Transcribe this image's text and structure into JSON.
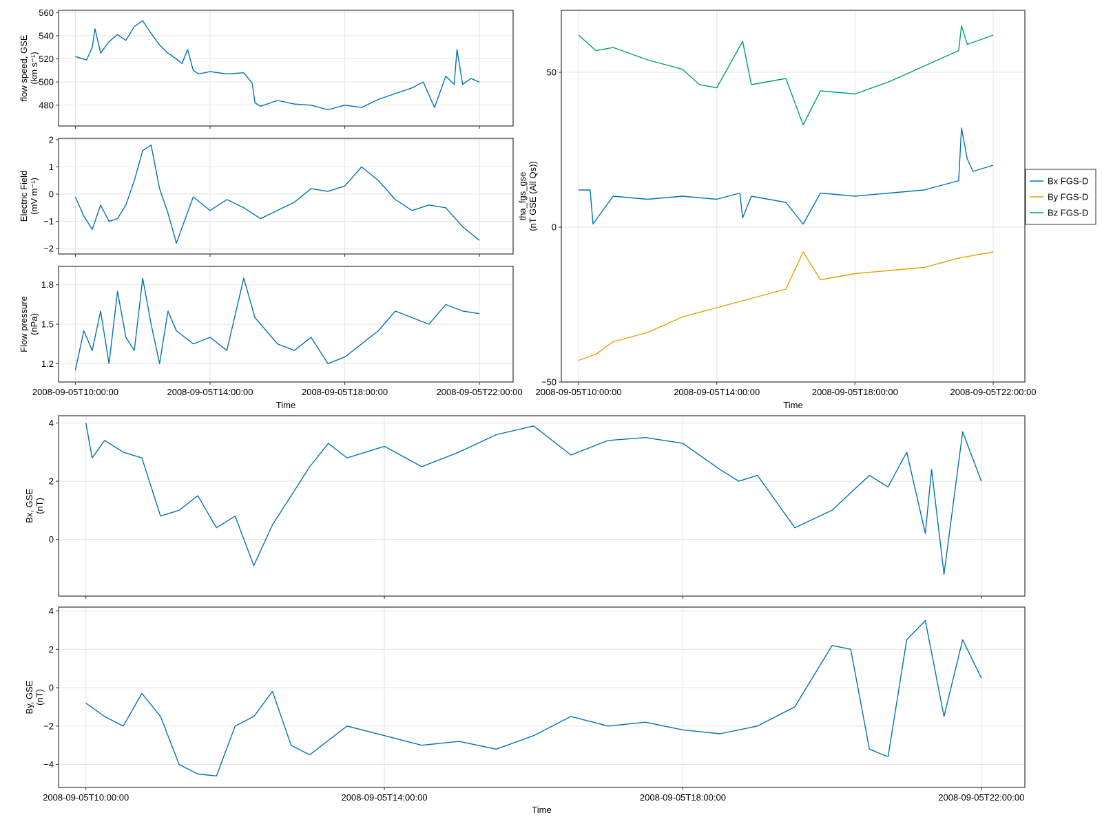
{
  "chart_data": [
    {
      "id": "flow-speed",
      "type": "line",
      "ylabel": [
        "flow speed, GSE",
        "(km s⁻¹)"
      ],
      "xlabel": "",
      "ylim": [
        462,
        562
      ],
      "yticks": [
        480,
        500,
        520,
        540,
        560
      ],
      "xlim": [
        "2008-09-05T09:30:00",
        "2008-09-05T23:00:00"
      ],
      "xticks": [
        "2008-09-05T10:00:00",
        "2008-09-05T14:00:00",
        "2008-09-05T18:00:00",
        "2008-09-05T22:00:00"
      ],
      "xtick_labels_shown": false,
      "grid": true,
      "series": [
        {
          "color": "#0072b2",
          "t": [
            "2008-09-05T10:00:00",
            "2008-09-05T10:20:00",
            "2008-09-05T10:30:00",
            "2008-09-05T10:35:00",
            "2008-09-05T10:45:00",
            "2008-09-05T11:00:00",
            "2008-09-05T11:15:00",
            "2008-09-05T11:30:00",
            "2008-09-05T11:45:00",
            "2008-09-05T12:00:00",
            "2008-09-05T12:15:00",
            "2008-09-05T12:30:00",
            "2008-09-05T12:45:00",
            "2008-09-05T13:00:00",
            "2008-09-05T13:10:00",
            "2008-09-05T13:20:00",
            "2008-09-05T13:30:00",
            "2008-09-05T13:40:00",
            "2008-09-05T14:00:00",
            "2008-09-05T14:30:00",
            "2008-09-05T15:00:00",
            "2008-09-05T15:15:00",
            "2008-09-05T15:20:00",
            "2008-09-05T15:30:00",
            "2008-09-05T16:00:00",
            "2008-09-05T16:30:00",
            "2008-09-05T17:00:00",
            "2008-09-05T17:30:00",
            "2008-09-05T18:00:00",
            "2008-09-05T18:30:00",
            "2008-09-05T19:00:00",
            "2008-09-05T19:30:00",
            "2008-09-05T20:00:00",
            "2008-09-05T20:20:00",
            "2008-09-05T20:40:00",
            "2008-09-05T21:00:00",
            "2008-09-05T21:15:00",
            "2008-09-05T21:20:00",
            "2008-09-05T21:30:00",
            "2008-09-05T21:45:00",
            "2008-09-05T22:00:00"
          ],
          "y": [
            522,
            519,
            530,
            546,
            525,
            535,
            541,
            536,
            548,
            553,
            542,
            532,
            525,
            520,
            516,
            528,
            510,
            507,
            509,
            507,
            508,
            499,
            482,
            479,
            484,
            481,
            480,
            476,
            480,
            478,
            485,
            490,
            495,
            500,
            478,
            505,
            498,
            528,
            498,
            503,
            500
          ]
        }
      ]
    },
    {
      "id": "electric-field",
      "type": "line",
      "ylabel": [
        "Electric Field",
        "(mV m⁻¹)"
      ],
      "xlabel": "",
      "ylim": [
        -2.2,
        2.05
      ],
      "yticks": [
        -2,
        -1,
        0,
        1,
        2
      ],
      "xlim": [
        "2008-09-05T09:30:00",
        "2008-09-05T23:00:00"
      ],
      "xticks": [
        "2008-09-05T10:00:00",
        "2008-09-05T14:00:00",
        "2008-09-05T18:00:00",
        "2008-09-05T22:00:00"
      ],
      "xtick_labels_shown": false,
      "grid": true,
      "series": [
        {
          "color": "#0072b2",
          "t": [
            "2008-09-05T10:00:00",
            "2008-09-05T10:15:00",
            "2008-09-05T10:30:00",
            "2008-09-05T10:45:00",
            "2008-09-05T11:00:00",
            "2008-09-05T11:15:00",
            "2008-09-05T11:30:00",
            "2008-09-05T11:45:00",
            "2008-09-05T12:00:00",
            "2008-09-05T12:15:00",
            "2008-09-05T12:30:00",
            "2008-09-05T12:45:00",
            "2008-09-05T13:00:00",
            "2008-09-05T13:30:00",
            "2008-09-05T14:00:00",
            "2008-09-05T14:30:00",
            "2008-09-05T15:00:00",
            "2008-09-05T15:30:00",
            "2008-09-05T16:00:00",
            "2008-09-05T16:30:00",
            "2008-09-05T17:00:00",
            "2008-09-05T17:30:00",
            "2008-09-05T18:00:00",
            "2008-09-05T18:30:00",
            "2008-09-05T19:00:00",
            "2008-09-05T19:30:00",
            "2008-09-05T20:00:00",
            "2008-09-05T20:30:00",
            "2008-09-05T21:00:00",
            "2008-09-05T21:30:00",
            "2008-09-05T22:00:00"
          ],
          "y": [
            -0.1,
            -0.8,
            -1.3,
            -0.4,
            -1.0,
            -0.9,
            -0.4,
            0.5,
            1.6,
            1.8,
            0.2,
            -0.7,
            -1.8,
            -0.1,
            -0.6,
            -0.2,
            -0.5,
            -0.9,
            -0.6,
            -0.3,
            0.2,
            0.1,
            0.3,
            1.0,
            0.5,
            -0.2,
            -0.6,
            -0.4,
            -0.5,
            -1.2,
            -1.7
          ]
        }
      ]
    },
    {
      "id": "flow-pressure",
      "type": "line",
      "ylabel": [
        "Flow pressure",
        "(nPa)"
      ],
      "xlabel": "Time",
      "ylim": [
        1.06,
        1.94
      ],
      "yticks": [
        1.2,
        1.5,
        1.8
      ],
      "xlim": [
        "2008-09-05T09:30:00",
        "2008-09-05T23:00:00"
      ],
      "xticks": [
        "2008-09-05T10:00:00",
        "2008-09-05T14:00:00",
        "2008-09-05T18:00:00",
        "2008-09-05T22:00:00"
      ],
      "xtick_labels_shown": true,
      "grid": true,
      "series": [
        {
          "color": "#0072b2",
          "t": [
            "2008-09-05T10:00:00",
            "2008-09-05T10:15:00",
            "2008-09-05T10:30:00",
            "2008-09-05T10:45:00",
            "2008-09-05T11:00:00",
            "2008-09-05T11:15:00",
            "2008-09-05T11:30:00",
            "2008-09-05T11:45:00",
            "2008-09-05T12:00:00",
            "2008-09-05T12:15:00",
            "2008-09-05T12:30:00",
            "2008-09-05T12:45:00",
            "2008-09-05T13:00:00",
            "2008-09-05T13:30:00",
            "2008-09-05T14:00:00",
            "2008-09-05T14:30:00",
            "2008-09-05T15:00:00",
            "2008-09-05T15:20:00",
            "2008-09-05T15:40:00",
            "2008-09-05T16:00:00",
            "2008-09-05T16:30:00",
            "2008-09-05T17:00:00",
            "2008-09-05T17:30:00",
            "2008-09-05T18:00:00",
            "2008-09-05T18:30:00",
            "2008-09-05T19:00:00",
            "2008-09-05T19:30:00",
            "2008-09-05T20:00:00",
            "2008-09-05T20:30:00",
            "2008-09-05T21:00:00",
            "2008-09-05T21:30:00",
            "2008-09-05T22:00:00"
          ],
          "y": [
            1.15,
            1.45,
            1.3,
            1.6,
            1.2,
            1.75,
            1.4,
            1.3,
            1.85,
            1.5,
            1.2,
            1.6,
            1.45,
            1.35,
            1.4,
            1.3,
            1.85,
            1.55,
            1.45,
            1.35,
            1.3,
            1.4,
            1.2,
            1.25,
            1.35,
            1.45,
            1.6,
            1.55,
            1.5,
            1.65,
            1.6,
            1.58
          ]
        }
      ]
    },
    {
      "id": "tha-fgs-gse",
      "type": "line",
      "ylabel": [
        "tha_fgs_gse",
        "(nT GSE (All Qs))"
      ],
      "xlabel": "Time",
      "ylim": [
        -50,
        70
      ],
      "yticks": [
        -50,
        0,
        50
      ],
      "xlim": [
        "2008-09-05T09:30:00",
        "2008-09-05T22:55:00"
      ],
      "xticks": [
        "2008-09-05T10:00:00",
        "2008-09-05T14:00:00",
        "2008-09-05T18:00:00",
        "2008-09-05T22:00:00"
      ],
      "xtick_labels_shown": true,
      "grid": true,
      "legend": "outside-right",
      "series": [
        {
          "name": "Bx FGS-D",
          "color": "#0072b2",
          "t": [
            "2008-09-05T10:00:00",
            "2008-09-05T10:20:00",
            "2008-09-05T10:25:00",
            "2008-09-05T11:00:00",
            "2008-09-05T12:00:00",
            "2008-09-05T13:00:00",
            "2008-09-05T14:00:00",
            "2008-09-05T14:40:00",
            "2008-09-05T14:45:00",
            "2008-09-05T15:00:00",
            "2008-09-05T16:00:00",
            "2008-09-05T16:30:00",
            "2008-09-05T17:00:00",
            "2008-09-05T18:00:00",
            "2008-09-05T19:00:00",
            "2008-09-05T20:00:00",
            "2008-09-05T21:00:00",
            "2008-09-05T21:05:00",
            "2008-09-05T21:15:00",
            "2008-09-05T21:25:00",
            "2008-09-05T22:00:00"
          ],
          "y": [
            12,
            12,
            1,
            10,
            9,
            10,
            9,
            11,
            3,
            10,
            8,
            1,
            11,
            10,
            11,
            12,
            15,
            32,
            22,
            18,
            20
          ]
        },
        {
          "name": "By FGS-D",
          "color": "#e69f00",
          "t": [
            "2008-09-05T10:00:00",
            "2008-09-05T10:30:00",
            "2008-09-05T11:00:00",
            "2008-09-05T12:00:00",
            "2008-09-05T13:00:00",
            "2008-09-05T14:00:00",
            "2008-09-05T15:00:00",
            "2008-09-05T16:00:00",
            "2008-09-05T16:30:00",
            "2008-09-05T17:00:00",
            "2008-09-05T17:30:00",
            "2008-09-05T18:00:00",
            "2008-09-05T19:00:00",
            "2008-09-05T20:00:00",
            "2008-09-05T21:00:00",
            "2008-09-05T22:00:00"
          ],
          "y": [
            -43,
            -41,
            -37,
            -34,
            -29,
            -26,
            -23,
            -20,
            -8,
            -17,
            -16,
            -15,
            -14,
            -13,
            -10,
            -8
          ]
        },
        {
          "name": "Bz FGS-D",
          "color": "#009e73",
          "t": [
            "2008-09-05T10:00:00",
            "2008-09-05T10:30:00",
            "2008-09-05T11:00:00",
            "2008-09-05T12:00:00",
            "2008-09-05T13:00:00",
            "2008-09-05T13:30:00",
            "2008-09-05T14:00:00",
            "2008-09-05T14:45:00",
            "2008-09-05T15:00:00",
            "2008-09-05T16:00:00",
            "2008-09-05T16:30:00",
            "2008-09-05T17:00:00",
            "2008-09-05T18:00:00",
            "2008-09-05T19:00:00",
            "2008-09-05T20:00:00",
            "2008-09-05T21:00:00",
            "2008-09-05T21:05:00",
            "2008-09-05T21:15:00",
            "2008-09-05T22:00:00"
          ],
          "y": [
            62,
            57,
            58,
            54,
            51,
            46,
            45,
            60,
            46,
            48,
            33,
            44,
            43,
            47,
            52,
            57,
            65,
            59,
            62
          ]
        }
      ]
    },
    {
      "id": "bx-gse",
      "type": "line",
      "ylabel": [
        "Bx, GSE",
        "(nT)"
      ],
      "xlabel": "",
      "ylim": [
        -1.95,
        4.25
      ],
      "yticks": [
        0,
        2,
        4
      ],
      "xlim": [
        "2008-09-05T09:38:00",
        "2008-09-05T22:35:00"
      ],
      "xticks": [
        "2008-09-05T10:00:00",
        "2008-09-05T14:00:00",
        "2008-09-05T18:00:00",
        "2008-09-05T22:00:00"
      ],
      "xtick_labels_shown": false,
      "grid": true,
      "series": [
        {
          "color": "#0072b2",
          "t": [
            "2008-09-05T10:00:00",
            "2008-09-05T10:05:00",
            "2008-09-05T10:15:00",
            "2008-09-05T10:30:00",
            "2008-09-05T10:45:00",
            "2008-09-05T11:00:00",
            "2008-09-05T11:15:00",
            "2008-09-05T11:30:00",
            "2008-09-05T11:45:00",
            "2008-09-05T12:00:00",
            "2008-09-05T12:15:00",
            "2008-09-05T12:30:00",
            "2008-09-05T12:45:00",
            "2008-09-05T13:00:00",
            "2008-09-05T13:15:00",
            "2008-09-05T13:30:00",
            "2008-09-05T14:00:00",
            "2008-09-05T14:30:00",
            "2008-09-05T15:00:00",
            "2008-09-05T15:30:00",
            "2008-09-05T16:00:00",
            "2008-09-05T16:30:00",
            "2008-09-05T17:00:00",
            "2008-09-05T17:30:00",
            "2008-09-05T18:00:00",
            "2008-09-05T18:30:00",
            "2008-09-05T18:45:00",
            "2008-09-05T19:00:00",
            "2008-09-05T19:30:00",
            "2008-09-05T20:00:00",
            "2008-09-05T20:30:00",
            "2008-09-05T20:45:00",
            "2008-09-05T21:00:00",
            "2008-09-05T21:15:00",
            "2008-09-05T21:20:00",
            "2008-09-05T21:30:00",
            "2008-09-05T21:45:00",
            "2008-09-05T22:00:00"
          ],
          "y": [
            4.0,
            2.8,
            3.4,
            3.0,
            2.8,
            0.8,
            1.0,
            1.5,
            0.4,
            0.8,
            -0.9,
            0.5,
            1.5,
            2.5,
            3.3,
            2.8,
            3.2,
            2.5,
            3.0,
            3.6,
            3.9,
            2.9,
            3.4,
            3.5,
            3.3,
            2.4,
            2.0,
            2.2,
            0.4,
            1.0,
            2.2,
            1.8,
            3.0,
            0.2,
            2.4,
            -1.2,
            3.7,
            2.0
          ]
        }
      ]
    },
    {
      "id": "by-gse",
      "type": "line",
      "ylabel": [
        "By, GSE",
        "(nT)"
      ],
      "xlabel": "Time",
      "ylim": [
        -5.2,
        4.2
      ],
      "yticks": [
        -4,
        -2,
        0,
        2,
        4
      ],
      "xlim": [
        "2008-09-05T09:38:00",
        "2008-09-05T22:35:00"
      ],
      "xticks": [
        "2008-09-05T10:00:00",
        "2008-09-05T14:00:00",
        "2008-09-05T18:00:00",
        "2008-09-05T22:00:00"
      ],
      "xtick_labels_shown": true,
      "grid": true,
      "series": [
        {
          "color": "#0072b2",
          "t": [
            "2008-09-05T10:00:00",
            "2008-09-05T10:15:00",
            "2008-09-05T10:30:00",
            "2008-09-05T10:45:00",
            "2008-09-05T11:00:00",
            "2008-09-05T11:15:00",
            "2008-09-05T11:30:00",
            "2008-09-05T11:45:00",
            "2008-09-05T12:00:00",
            "2008-09-05T12:15:00",
            "2008-09-05T12:30:00",
            "2008-09-05T12:45:00",
            "2008-09-05T13:00:00",
            "2008-09-05T13:30:00",
            "2008-09-05T14:00:00",
            "2008-09-05T14:30:00",
            "2008-09-05T15:00:00",
            "2008-09-05T15:30:00",
            "2008-09-05T16:00:00",
            "2008-09-05T16:30:00",
            "2008-09-05T17:00:00",
            "2008-09-05T17:30:00",
            "2008-09-05T18:00:00",
            "2008-09-05T18:30:00",
            "2008-09-05T19:00:00",
            "2008-09-05T19:30:00",
            "2008-09-05T20:00:00",
            "2008-09-05T20:15:00",
            "2008-09-05T20:30:00",
            "2008-09-05T20:45:00",
            "2008-09-05T21:00:00",
            "2008-09-05T21:15:00",
            "2008-09-05T21:30:00",
            "2008-09-05T21:45:00",
            "2008-09-05T22:00:00"
          ],
          "y": [
            -0.8,
            -1.5,
            -2.0,
            -0.3,
            -1.5,
            -4.0,
            -4.5,
            -4.6,
            -2.0,
            -1.5,
            -0.2,
            -3.0,
            -3.5,
            -2.0,
            -2.5,
            -3.0,
            -2.8,
            -3.2,
            -2.5,
            -1.5,
            -2.0,
            -1.8,
            -2.2,
            -2.4,
            -2.0,
            -1.0,
            2.2,
            2.0,
            -3.2,
            -3.6,
            2.5,
            3.5,
            -1.5,
            2.5,
            0.5
          ]
        }
      ]
    }
  ]
}
